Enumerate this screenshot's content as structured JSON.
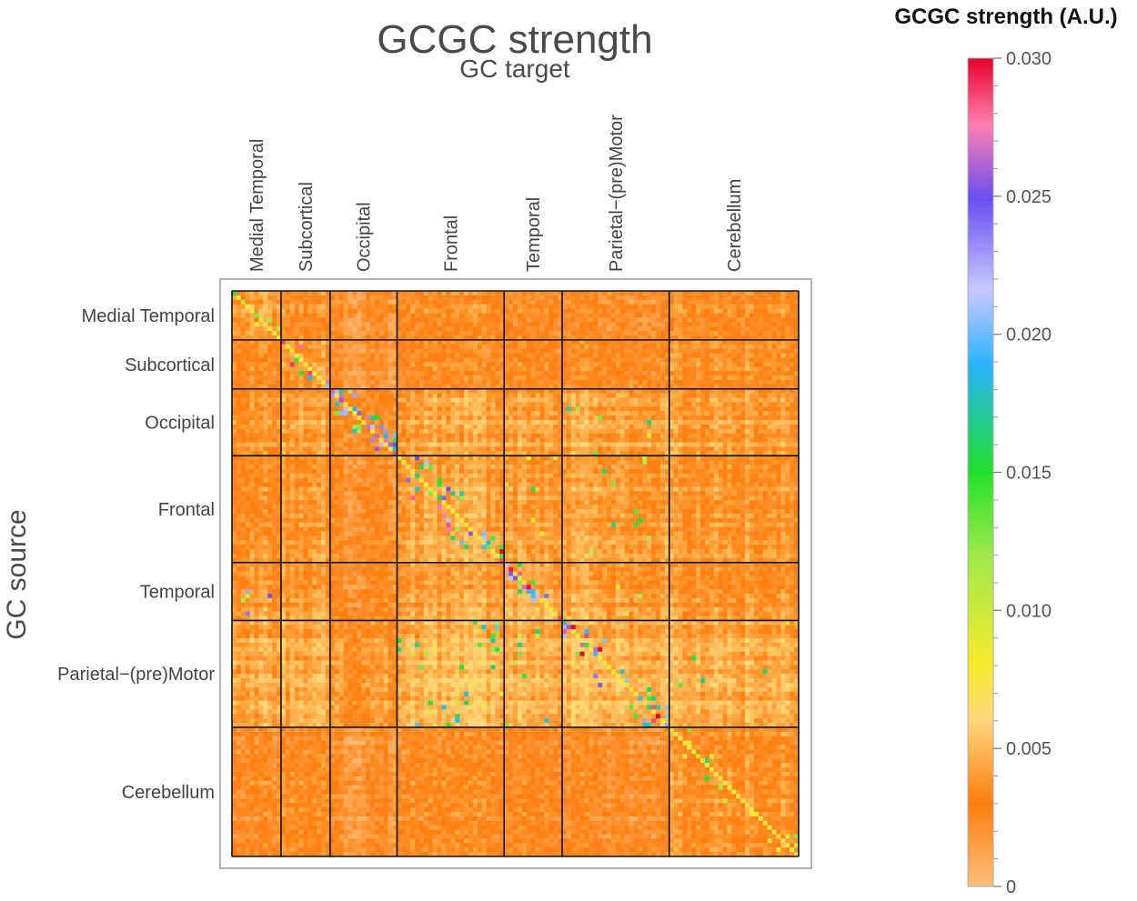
{
  "chart_data": {
    "type": "heatmap",
    "title": "GCGC strength",
    "subtitle": "GC target",
    "xlabel": "GC target",
    "ylabel": "GC source",
    "groups": [
      "Medial Temporal",
      "Subcortical",
      "Occipital",
      "Frontal",
      "Temporal",
      "Parietal−(pre)Motor",
      "Cerebellum"
    ],
    "group_sizes": [
      11,
      11,
      15,
      24,
      13,
      24,
      29
    ],
    "colorbar": {
      "label": "GCGC strength (A.U.)",
      "range": [
        0,
        0.03
      ],
      "tick_labels": [
        "0",
        "0.005",
        "0.010",
        "0.015",
        "0.020",
        "0.025",
        "0.030"
      ],
      "tick_values": [
        0,
        0.005,
        0.01,
        0.015,
        0.02,
        0.025,
        0.03
      ],
      "stops": [
        [
          0.0,
          "#ffc07a"
        ],
        [
          0.1,
          "#ff7d0f"
        ],
        [
          0.2,
          "#ffd67a"
        ],
        [
          0.27,
          "#f5eb2a"
        ],
        [
          0.4,
          "#9fe84d"
        ],
        [
          0.5,
          "#22e12a"
        ],
        [
          0.63,
          "#2ab4ff"
        ],
        [
          0.72,
          "#c8c8ff"
        ],
        [
          0.83,
          "#6a4ff0"
        ],
        [
          0.92,
          "#ff7fb0"
        ],
        [
          1.0,
          "#e8002a"
        ]
      ]
    },
    "baseline_block_means": [
      [
        0.0045,
        0.0035,
        0.0022,
        0.0035,
        0.003,
        0.0028,
        0.0035
      ],
      [
        0.0035,
        0.004,
        0.002,
        0.0032,
        0.003,
        0.003,
        0.0035
      ],
      [
        0.004,
        0.0042,
        0.003,
        0.0045,
        0.0042,
        0.0045,
        0.0042
      ],
      [
        0.0035,
        0.0038,
        0.0025,
        0.0045,
        0.004,
        0.0042,
        0.0038
      ],
      [
        0.004,
        0.0038,
        0.0025,
        0.0042,
        0.0045,
        0.004,
        0.0035
      ],
      [
        0.0045,
        0.0045,
        0.0035,
        0.005,
        0.0045,
        0.0048,
        0.0045
      ],
      [
        0.0028,
        0.003,
        0.002,
        0.003,
        0.0028,
        0.0025,
        0.0035
      ]
    ],
    "strong_connections": [
      {
        "source": 0,
        "target": 0,
        "value": 0.015,
        "n": 6
      },
      {
        "source": 1,
        "target": 1,
        "value": 0.026,
        "n": 10
      },
      {
        "source": 2,
        "target": 2,
        "value": 0.024,
        "n": 45
      },
      {
        "source": 2,
        "target": 5,
        "value": 0.016,
        "n": 6
      },
      {
        "source": 3,
        "target": 3,
        "value": 0.025,
        "n": 40
      },
      {
        "source": 3,
        "target": 4,
        "value": 0.014,
        "n": 6
      },
      {
        "source": 3,
        "target": 5,
        "value": 0.014,
        "n": 10
      },
      {
        "source": 4,
        "target": 0,
        "value": 0.022,
        "n": 5
      },
      {
        "source": 4,
        "target": 4,
        "value": 0.025,
        "n": 22
      },
      {
        "source": 4,
        "target": 5,
        "value": 0.013,
        "n": 5
      },
      {
        "source": 5,
        "target": 3,
        "value": 0.018,
        "n": 30
      },
      {
        "source": 5,
        "target": 4,
        "value": 0.016,
        "n": 10
      },
      {
        "source": 5,
        "target": 5,
        "value": 0.026,
        "n": 42
      },
      {
        "source": 5,
        "target": 6,
        "value": 0.015,
        "n": 6
      },
      {
        "source": 6,
        "target": 6,
        "value": 0.014,
        "n": 15
      }
    ]
  }
}
